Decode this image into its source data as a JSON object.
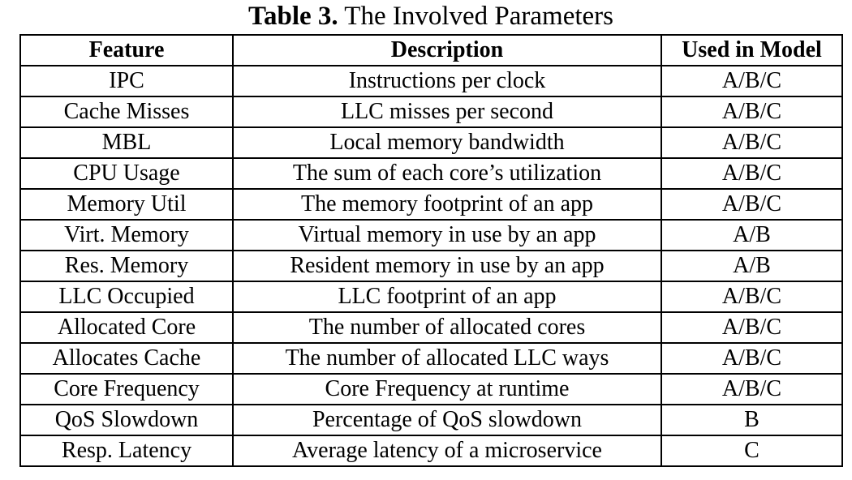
{
  "caption": {
    "label": "Table 3.",
    "title": "The Involved Parameters"
  },
  "table": {
    "headers": [
      "Feature",
      "Description",
      "Used in Model"
    ],
    "rows": [
      [
        "IPC",
        "Instructions per clock",
        "A/B/C"
      ],
      [
        "Cache Misses",
        "LLC misses per second",
        "A/B/C"
      ],
      [
        "MBL",
        "Local memory bandwidth",
        "A/B/C"
      ],
      [
        "CPU Usage",
        "The sum of each core’s utilization",
        "A/B/C"
      ],
      [
        "Memory Util",
        "The memory footprint of an app",
        "A/B/C"
      ],
      [
        "Virt. Memory",
        "Virtual memory in use by an app",
        "A/B"
      ],
      [
        "Res. Memory",
        "Resident memory in use by an app",
        "A/B"
      ],
      [
        "LLC Occupied",
        "LLC footprint of an app",
        "A/B/C"
      ],
      [
        "Allocated Core",
        "The number of allocated cores",
        "A/B/C"
      ],
      [
        "Allocates Cache",
        "The number of allocated LLC ways",
        "A/B/C"
      ],
      [
        "Core Frequency",
        "Core Frequency at runtime",
        "A/B/C"
      ],
      [
        "QoS Slowdown",
        "Percentage of QoS slowdown",
        "B"
      ],
      [
        "Resp. Latency",
        "Average latency of a microservice",
        "C"
      ]
    ]
  }
}
